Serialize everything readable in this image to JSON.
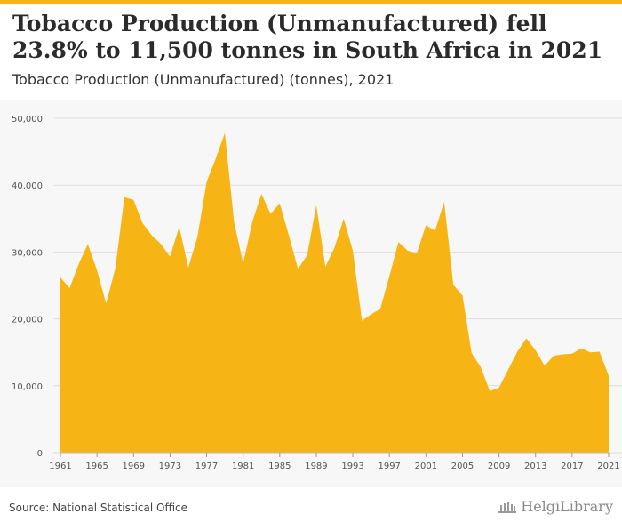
{
  "title": "Tobacco Production (Unmanufactured) fell 23.8% to 11,500 tonnes in South Africa in 2021",
  "subtitle": "Tobacco Production (Unmanufactured) (tonnes), 2021",
  "source": "Source: National Statistical Office",
  "brand": "HelgiLibrary",
  "colors": {
    "area": "#f7b515",
    "accent": "#f7b515",
    "panel": "#f7f7f7"
  },
  "chart_data": {
    "type": "area",
    "title": "Tobacco Production (Unmanufactured) fell 23.8% to 11,500 tonnes in South Africa in 2021",
    "subtitle": "Tobacco Production (Unmanufactured) (tonnes), 2021",
    "xlabel": "",
    "ylabel": "",
    "ylim": [
      0,
      50000
    ],
    "yticks": [
      "0",
      "10,000",
      "20,000",
      "30,000",
      "40,000",
      "50,000"
    ],
    "xticks": [
      "1961",
      "1965",
      "1969",
      "1973",
      "1977",
      "1981",
      "1985",
      "1989",
      "1993",
      "1997",
      "2001",
      "2005",
      "2009",
      "2013",
      "2017",
      "2021"
    ],
    "grid": "horizontal",
    "series": [
      {
        "x": [
          1961,
          1962,
          1963,
          1964,
          1965,
          1966,
          1967,
          1968,
          1969,
          1970,
          1971,
          1972,
          1973,
          1974,
          1975,
          1976,
          1977,
          1978,
          1979,
          1980,
          1981,
          1982,
          1983,
          1984,
          1985,
          1986,
          1987,
          1988,
          1989,
          1990,
          1991,
          1992,
          1993,
          1994,
          1995,
          1996,
          1997,
          1998,
          1999,
          2000,
          2001,
          2002,
          2003,
          2004,
          2005,
          2006,
          2007,
          2008,
          2009,
          2010,
          2011,
          2012,
          2013,
          2014,
          2015,
          2016,
          2017,
          2018,
          2019,
          2020,
          2021
        ],
        "values": [
          26200,
          24600,
          28200,
          31200,
          27300,
          22300,
          27500,
          38200,
          37800,
          34300,
          32500,
          31200,
          29300,
          33800,
          27700,
          32300,
          40500,
          44000,
          47800,
          34500,
          28300,
          34500,
          38700,
          35700,
          37300,
          32500,
          27500,
          29500,
          37000,
          27800,
          30700,
          35000,
          30200,
          19700,
          20700,
          21500,
          26400,
          31500,
          30200,
          29800,
          34000,
          33200,
          37500,
          25100,
          23500,
          14900,
          12800,
          9200,
          9700,
          12400,
          15100,
          17100,
          15300,
          13000,
          14500,
          14700,
          14800,
          15600,
          15000,
          15100,
          11500
        ]
      }
    ]
  }
}
